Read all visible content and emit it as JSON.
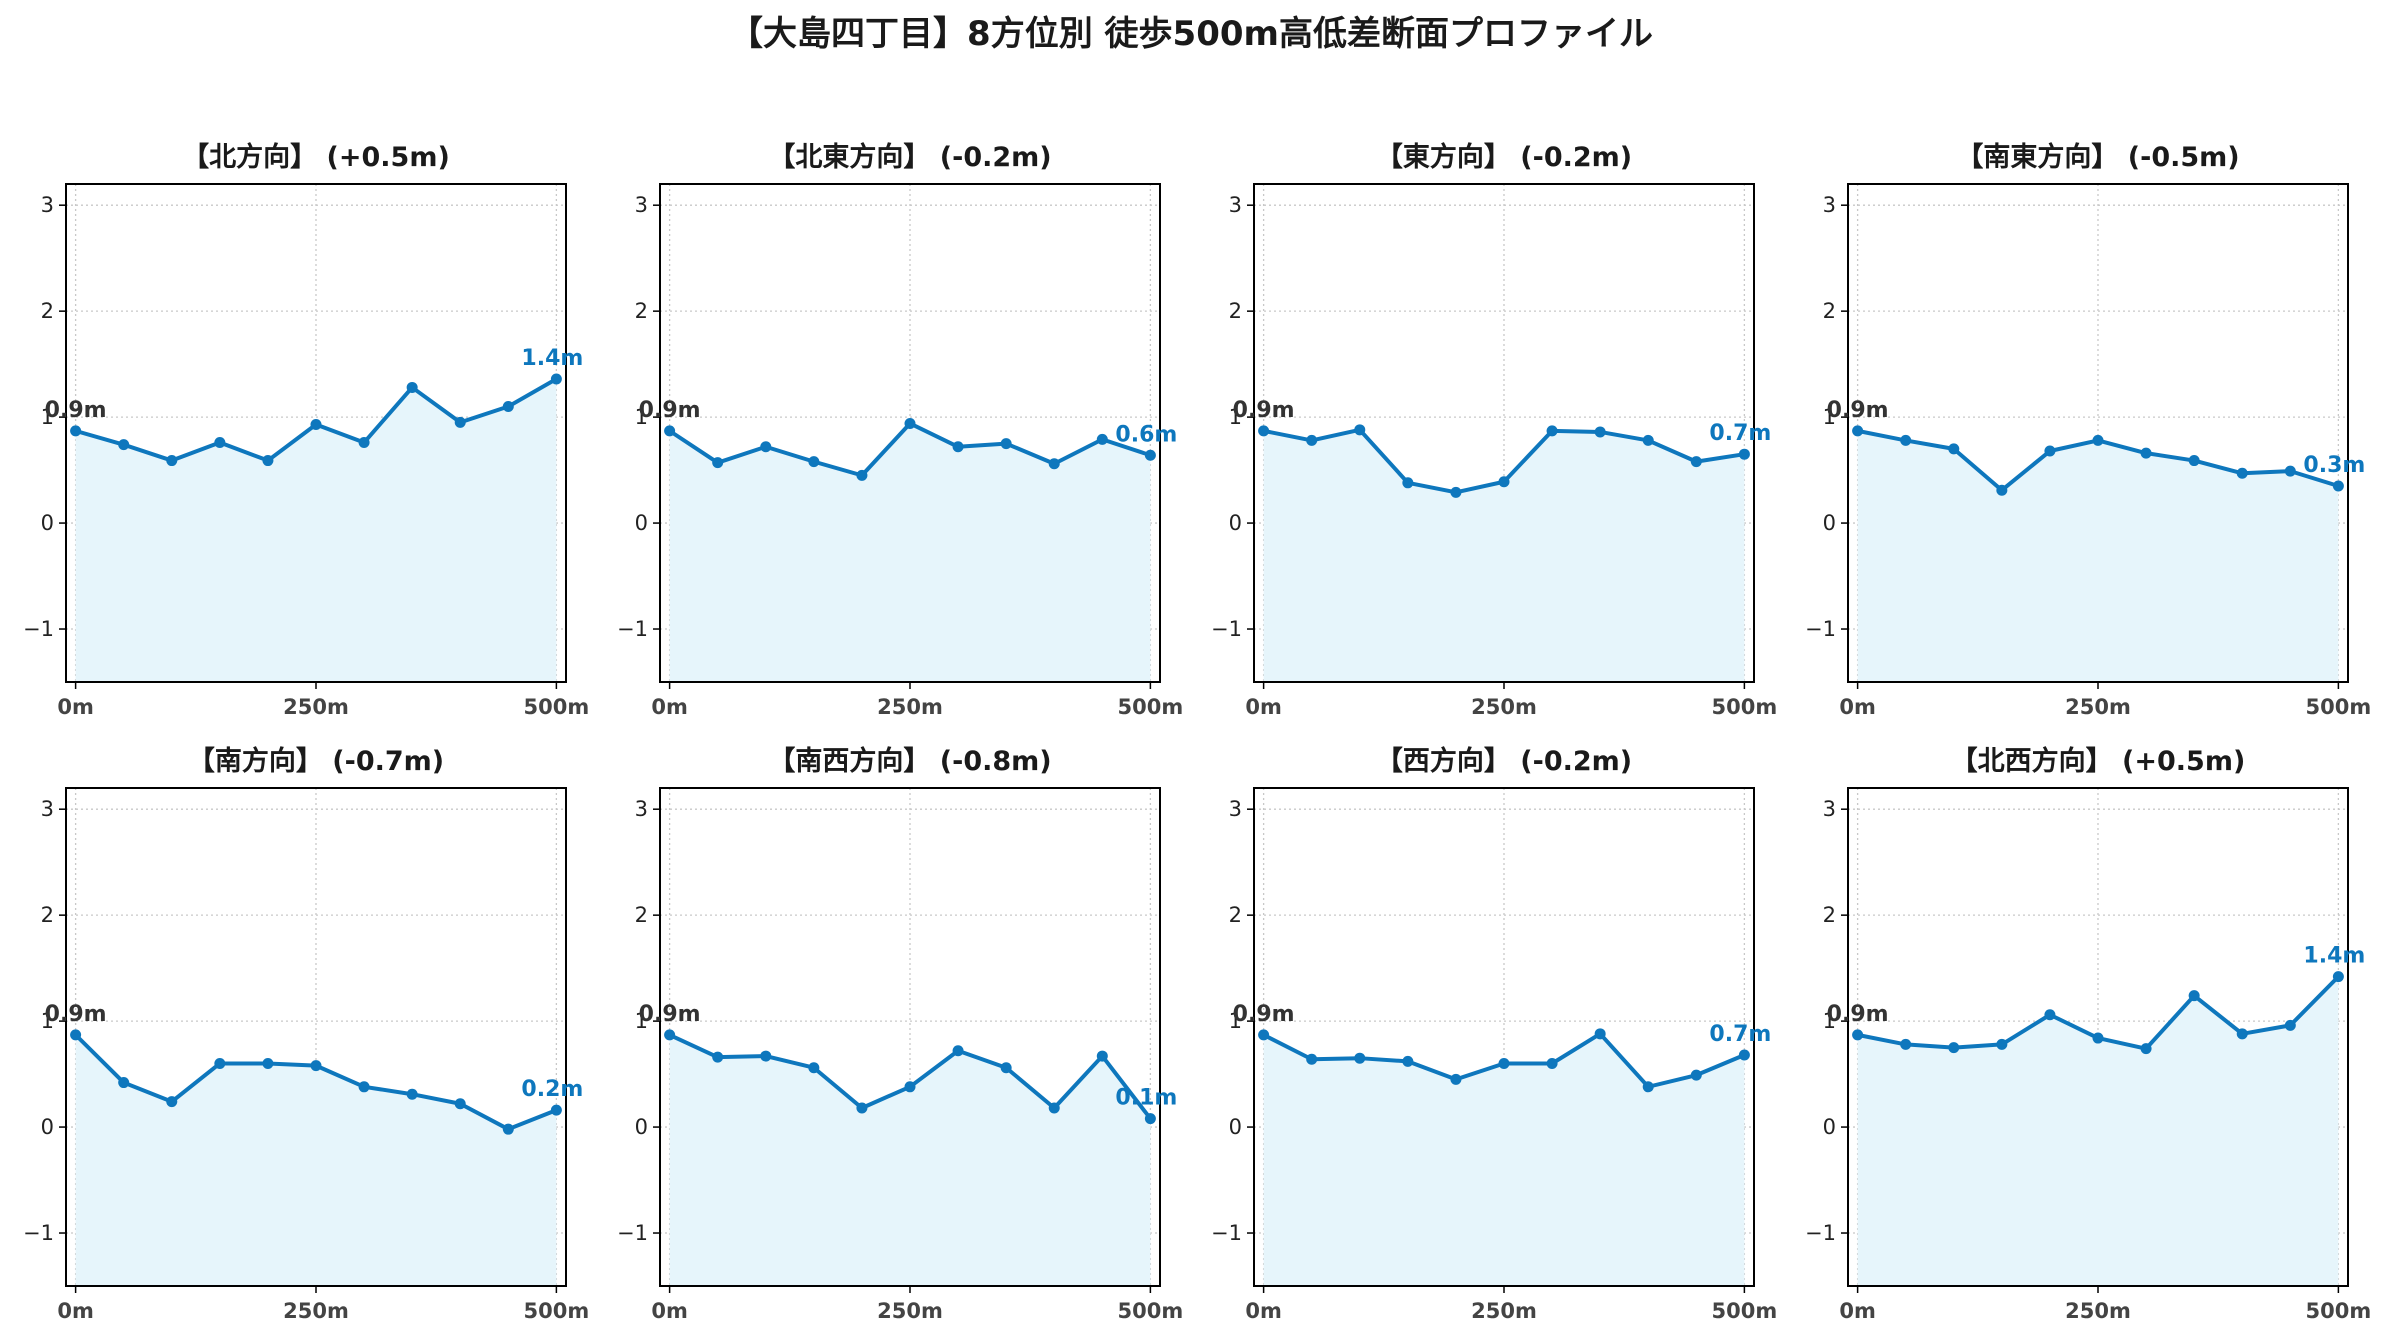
{
  "title": "【大島四丁目】8方位別 徒歩500m高低差断面プロファイル",
  "colors": {
    "line": "#0e77bd",
    "fill": "#e6f5fb",
    "grid": "#c8c8c8",
    "start_label": "#333333",
    "end_label": "#0e77bd"
  },
  "chart_data": [
    {
      "type": "line",
      "title": "【北方向】 (+0.5m)",
      "x": [
        0,
        50,
        100,
        150,
        200,
        250,
        300,
        350,
        400,
        450,
        500
      ],
      "y": [
        0.87,
        0.74,
        0.59,
        0.76,
        0.59,
        0.93,
        0.76,
        1.28,
        0.95,
        1.1,
        1.36
      ],
      "start_label": "0.9m",
      "end_label": "1.4m",
      "xticks": [
        "0m",
        "250m",
        "500m"
      ],
      "yticks": [
        -1,
        0,
        1,
        2,
        3
      ],
      "ylim": [
        -1.5,
        3.2
      ],
      "xlim": [
        -10,
        510
      ],
      "grid": true
    },
    {
      "type": "line",
      "title": "【北東方向】 (-0.2m)",
      "x": [
        0,
        50,
        100,
        150,
        200,
        250,
        300,
        350,
        400,
        450,
        500
      ],
      "y": [
        0.87,
        0.57,
        0.72,
        0.58,
        0.45,
        0.94,
        0.72,
        0.75,
        0.56,
        0.79,
        0.64
      ],
      "start_label": "0.9m",
      "end_label": "0.6m",
      "xticks": [
        "0m",
        "250m",
        "500m"
      ],
      "yticks": [
        -1,
        0,
        1,
        2,
        3
      ],
      "ylim": [
        -1.5,
        3.2
      ],
      "xlim": [
        -10,
        510
      ],
      "grid": true
    },
    {
      "type": "line",
      "title": "【東方向】 (-0.2m)",
      "x": [
        0,
        50,
        100,
        150,
        200,
        250,
        300,
        350,
        400,
        450,
        500
      ],
      "y": [
        0.87,
        0.78,
        0.88,
        0.38,
        0.29,
        0.39,
        0.87,
        0.86,
        0.78,
        0.58,
        0.65
      ],
      "start_label": "0.9m",
      "end_label": "0.7m",
      "xticks": [
        "0m",
        "250m",
        "500m"
      ],
      "yticks": [
        -1,
        0,
        1,
        2,
        3
      ],
      "ylim": [
        -1.5,
        3.2
      ],
      "xlim": [
        -10,
        510
      ],
      "grid": true
    },
    {
      "type": "line",
      "title": "【南東方向】 (-0.5m)",
      "x": [
        0,
        50,
        100,
        150,
        200,
        250,
        300,
        350,
        400,
        450,
        500
      ],
      "y": [
        0.87,
        0.78,
        0.7,
        0.31,
        0.68,
        0.78,
        0.66,
        0.59,
        0.47,
        0.49,
        0.35
      ],
      "start_label": "0.9m",
      "end_label": "0.3m",
      "xticks": [
        "0m",
        "250m",
        "500m"
      ],
      "yticks": [
        -1,
        0,
        1,
        2,
        3
      ],
      "ylim": [
        -1.5,
        3.2
      ],
      "xlim": [
        -10,
        510
      ],
      "grid": true
    },
    {
      "type": "line",
      "title": "【南方向】 (-0.7m)",
      "x": [
        0,
        50,
        100,
        150,
        200,
        250,
        300,
        350,
        400,
        450,
        500
      ],
      "y": [
        0.87,
        0.42,
        0.24,
        0.6,
        0.6,
        0.58,
        0.38,
        0.31,
        0.22,
        -0.02,
        0.16
      ],
      "start_label": "0.9m",
      "end_label": "0.2m",
      "xticks": [
        "0m",
        "250m",
        "500m"
      ],
      "yticks": [
        -1,
        0,
        1,
        2,
        3
      ],
      "ylim": [
        -1.5,
        3.2
      ],
      "xlim": [
        -10,
        510
      ],
      "grid": true
    },
    {
      "type": "line",
      "title": "【南西方向】 (-0.8m)",
      "x": [
        0,
        50,
        100,
        150,
        200,
        250,
        300,
        350,
        400,
        450,
        500
      ],
      "y": [
        0.87,
        0.66,
        0.67,
        0.56,
        0.18,
        0.38,
        0.72,
        0.56,
        0.18,
        0.67,
        0.08
      ],
      "start_label": "0.9m",
      "end_label": "0.1m",
      "xticks": [
        "0m",
        "250m",
        "500m"
      ],
      "yticks": [
        -1,
        0,
        1,
        2,
        3
      ],
      "ylim": [
        -1.5,
        3.2
      ],
      "xlim": [
        -10,
        510
      ],
      "grid": true
    },
    {
      "type": "line",
      "title": "【西方向】 (-0.2m)",
      "x": [
        0,
        50,
        100,
        150,
        200,
        250,
        300,
        350,
        400,
        450,
        500
      ],
      "y": [
        0.87,
        0.64,
        0.65,
        0.62,
        0.45,
        0.6,
        0.6,
        0.88,
        0.38,
        0.49,
        0.68
      ],
      "start_label": "0.9m",
      "end_label": "0.7m",
      "xticks": [
        "0m",
        "250m",
        "500m"
      ],
      "yticks": [
        -1,
        0,
        1,
        2,
        3
      ],
      "ylim": [
        -1.5,
        3.2
      ],
      "xlim": [
        -10,
        510
      ],
      "grid": true
    },
    {
      "type": "line",
      "title": "【北西方向】 (+0.5m)",
      "x": [
        0,
        50,
        100,
        150,
        200,
        250,
        300,
        350,
        400,
        450,
        500
      ],
      "y": [
        0.87,
        0.78,
        0.75,
        0.78,
        1.06,
        0.84,
        0.74,
        1.24,
        0.88,
        0.96,
        1.42
      ],
      "start_label": "0.9m",
      "end_label": "1.4m",
      "xticks": [
        "0m",
        "250m",
        "500m"
      ],
      "yticks": [
        -1,
        0,
        1,
        2,
        3
      ],
      "ylim": [
        -1.5,
        3.2
      ],
      "xlim": [
        -10,
        510
      ],
      "grid": true
    }
  ]
}
